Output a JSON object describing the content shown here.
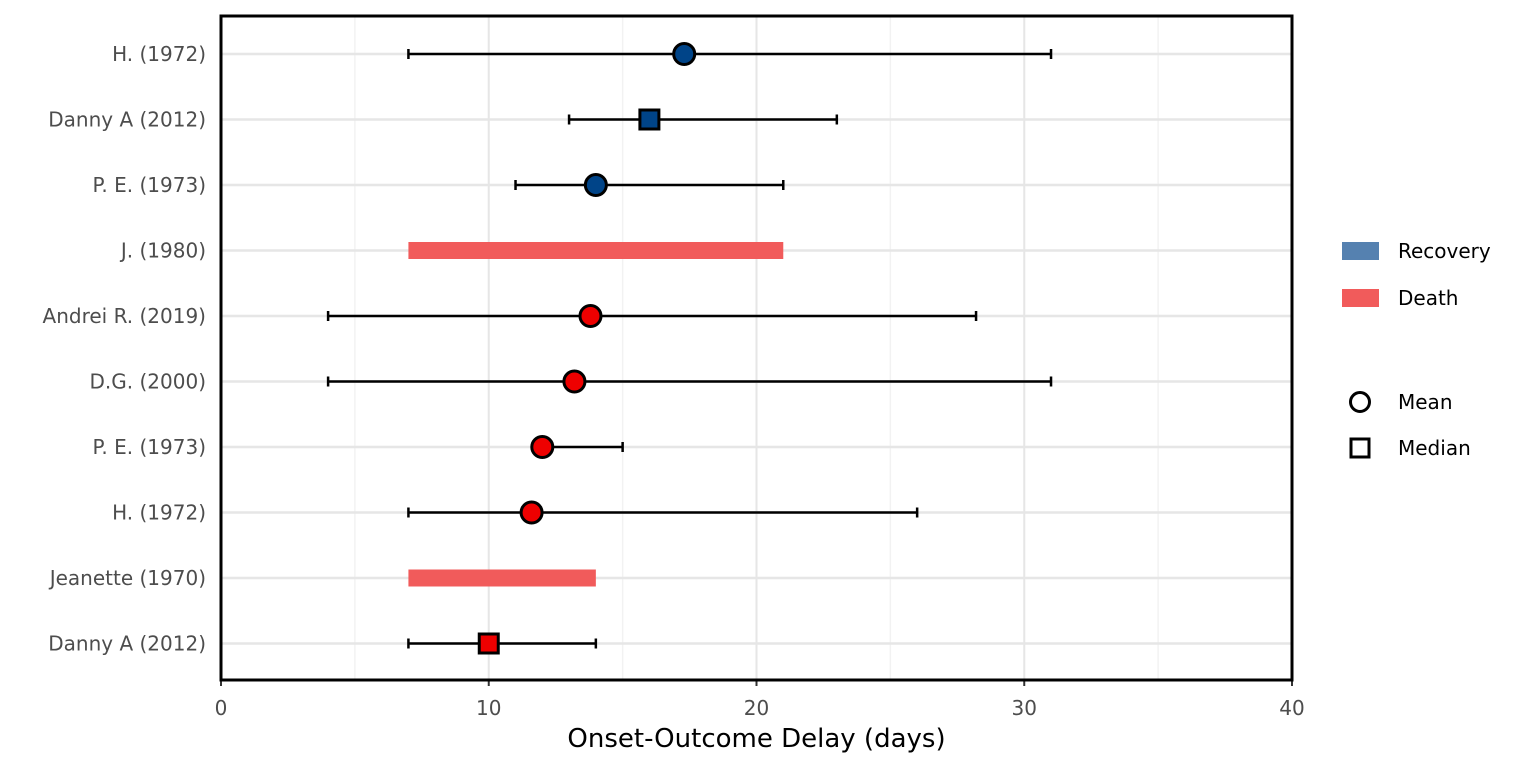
{
  "chart_data": {
    "type": "forest",
    "xlabel": "Onset-Outcome Delay (days)",
    "xlim": [
      0,
      40
    ],
    "xticks": [
      0,
      10,
      20,
      30,
      40
    ],
    "x_minor_gridlines": [
      5,
      15,
      25,
      35
    ],
    "grid": true,
    "legend_position": "right",
    "legend": {
      "outcomes": [
        {
          "label": "Recovery",
          "color": "#5581b0"
        },
        {
          "label": "Death",
          "color": "#f15b5b"
        }
      ],
      "estimates": [
        {
          "label": "Mean",
          "shape": "circle"
        },
        {
          "label": "Median",
          "shape": "square"
        }
      ]
    },
    "outcome_colors": {
      "Recovery": "#004488",
      "Death": "#ee0000"
    },
    "rows": [
      {
        "label": "H. (1972)",
        "outcome": "Recovery",
        "estimate": "Mean",
        "value": 17.3,
        "low": 7,
        "high": 31
      },
      {
        "label": "Danny A (2012)",
        "outcome": "Recovery",
        "estimate": "Median",
        "value": 16,
        "low": 13,
        "high": 23
      },
      {
        "label": "P. E. (1973)",
        "outcome": "Recovery",
        "estimate": "Mean",
        "value": 14,
        "low": 11,
        "high": 21
      },
      {
        "label": "J. (1980)",
        "outcome": "Death",
        "estimate": "Range",
        "value": null,
        "low": 7,
        "high": 21
      },
      {
        "label": "Andrei R. (2019)",
        "outcome": "Death",
        "estimate": "Mean",
        "value": 13.8,
        "low": 4,
        "high": 28.2
      },
      {
        "label": "D.G. (2000)",
        "outcome": "Death",
        "estimate": "Mean",
        "value": 13.2,
        "low": 4,
        "high": 31
      },
      {
        "label": "P. E. (1973)",
        "outcome": "Death",
        "estimate": "Mean",
        "value": 12,
        "low": 12,
        "high": 15
      },
      {
        "label": "H. (1972)",
        "outcome": "Death",
        "estimate": "Mean",
        "value": 11.6,
        "low": 7,
        "high": 26
      },
      {
        "label": "Jeanette (1970)",
        "outcome": "Death",
        "estimate": "Range",
        "value": null,
        "low": 7,
        "high": 14
      },
      {
        "label": "Danny A (2012)",
        "outcome": "Death",
        "estimate": "Median",
        "value": 10,
        "low": 7,
        "high": 14
      }
    ]
  }
}
